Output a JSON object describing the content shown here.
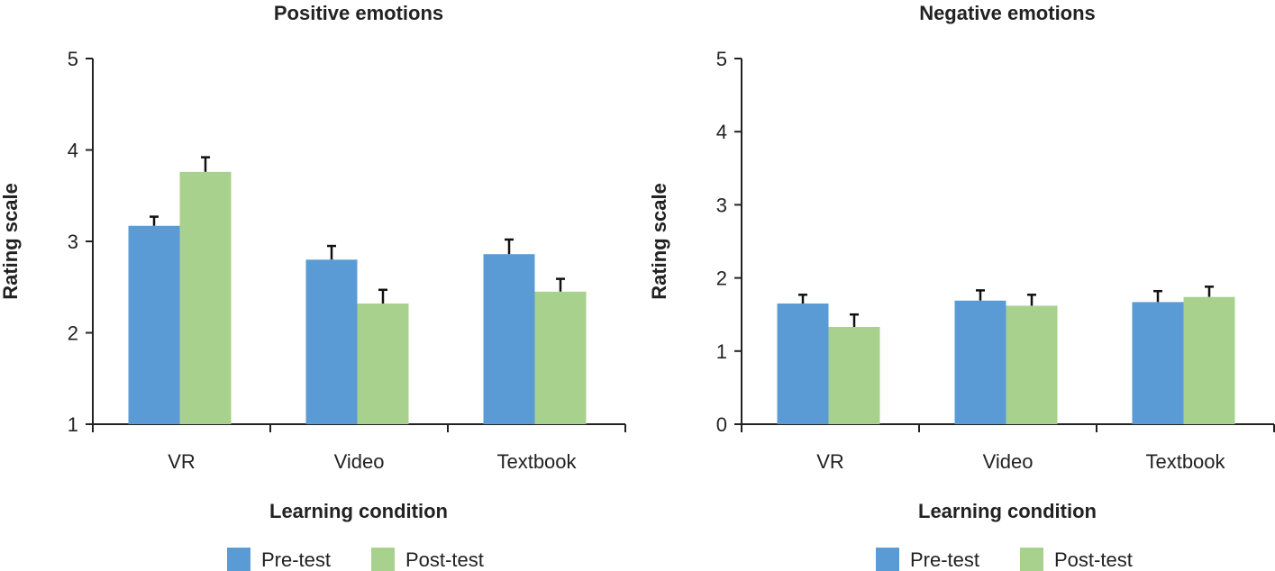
{
  "chart_data": [
    {
      "type": "bar",
      "title": "Positive emotions",
      "xlabel": "Learning condition",
      "ylabel": "Rating scale",
      "ylim": [
        1,
        5
      ],
      "yticks": [
        "1",
        "2",
        "3",
        "4",
        "5"
      ],
      "categories": [
        "VR",
        "Video",
        "Textbook"
      ],
      "series": [
        {
          "name": "Pre-test",
          "color": "#5b9bd5",
          "values": [
            3.17,
            2.8,
            2.86
          ],
          "error_upper": [
            3.27,
            2.95,
            3.02
          ]
        },
        {
          "name": "Post-test",
          "color": "#a9d18e",
          "values": [
            3.76,
            2.32,
            2.45
          ],
          "error_upper": [
            3.92,
            2.47,
            2.59
          ]
        }
      ],
      "legend": "bottom"
    },
    {
      "type": "bar",
      "title": "Negative emotions",
      "xlabel": "Learning condition",
      "ylabel": "Rating scale",
      "ylim": [
        0,
        5
      ],
      "yticks": [
        "0",
        "1",
        "2",
        "3",
        "4",
        "5"
      ],
      "categories": [
        "VR",
        "Video",
        "Textbook"
      ],
      "series": [
        {
          "name": "Pre-test",
          "color": "#5b9bd5",
          "values": [
            1.65,
            1.69,
            1.67
          ],
          "error_upper": [
            1.77,
            1.83,
            1.82
          ]
        },
        {
          "name": "Post-test",
          "color": "#a9d18e",
          "values": [
            1.33,
            1.62,
            1.74
          ],
          "error_upper": [
            1.5,
            1.77,
            1.88
          ]
        }
      ],
      "legend": "bottom"
    }
  ]
}
